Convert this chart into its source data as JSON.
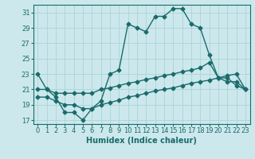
{
  "xlabel": "Humidex (Indice chaleur)",
  "background_color": "#cce8ec",
  "line_color": "#1a6b6b",
  "grid_color": "#aad4d8",
  "xlim": [
    -0.5,
    23.5
  ],
  "ylim": [
    16.5,
    32.0
  ],
  "xticks": [
    0,
    1,
    2,
    3,
    4,
    5,
    6,
    7,
    8,
    9,
    10,
    11,
    12,
    13,
    14,
    15,
    16,
    17,
    18,
    19,
    20,
    21,
    22,
    23
  ],
  "yticks": [
    17,
    19,
    21,
    23,
    25,
    27,
    29,
    31
  ],
  "line1_x": [
    0,
    1,
    2,
    3,
    4,
    5,
    6,
    7,
    8,
    9,
    10,
    11,
    12,
    13,
    14,
    15,
    16,
    17,
    18,
    19,
    20,
    21,
    22,
    23
  ],
  "line1_y": [
    23,
    21,
    20,
    18,
    18,
    17,
    18.5,
    19.5,
    23,
    23.5,
    29.5,
    29,
    28.5,
    30.5,
    30.5,
    31.5,
    31.5,
    29.5,
    29,
    25.5,
    22.5,
    22.5,
    21.5,
    21
  ],
  "line2_x": [
    0,
    1,
    2,
    3,
    4,
    5,
    6,
    7,
    8,
    9,
    10,
    11,
    12,
    13,
    14,
    15,
    16,
    17,
    18,
    19,
    20,
    21,
    22,
    23
  ],
  "line2_y": [
    21,
    21,
    20.5,
    20.5,
    20.5,
    20.5,
    20.5,
    21,
    21.2,
    21.5,
    21.8,
    22,
    22.3,
    22.5,
    22.8,
    23,
    23.3,
    23.5,
    23.8,
    24.5,
    22.5,
    22,
    22,
    21
  ],
  "line3_x": [
    0,
    1,
    2,
    3,
    4,
    5,
    6,
    7,
    8,
    9,
    10,
    11,
    12,
    13,
    14,
    15,
    16,
    17,
    18,
    19,
    20,
    21,
    22,
    23
  ],
  "line3_y": [
    20,
    20,
    19.5,
    19,
    19,
    18.5,
    18.5,
    19,
    19.3,
    19.6,
    20,
    20.2,
    20.5,
    20.8,
    21,
    21.2,
    21.5,
    21.8,
    22,
    22.2,
    22.5,
    22.8,
    23,
    21
  ],
  "marker": "D",
  "marker_size": 2.5,
  "linewidth": 1.0,
  "tick_labelsize": 6,
  "xlabel_fontsize": 7
}
